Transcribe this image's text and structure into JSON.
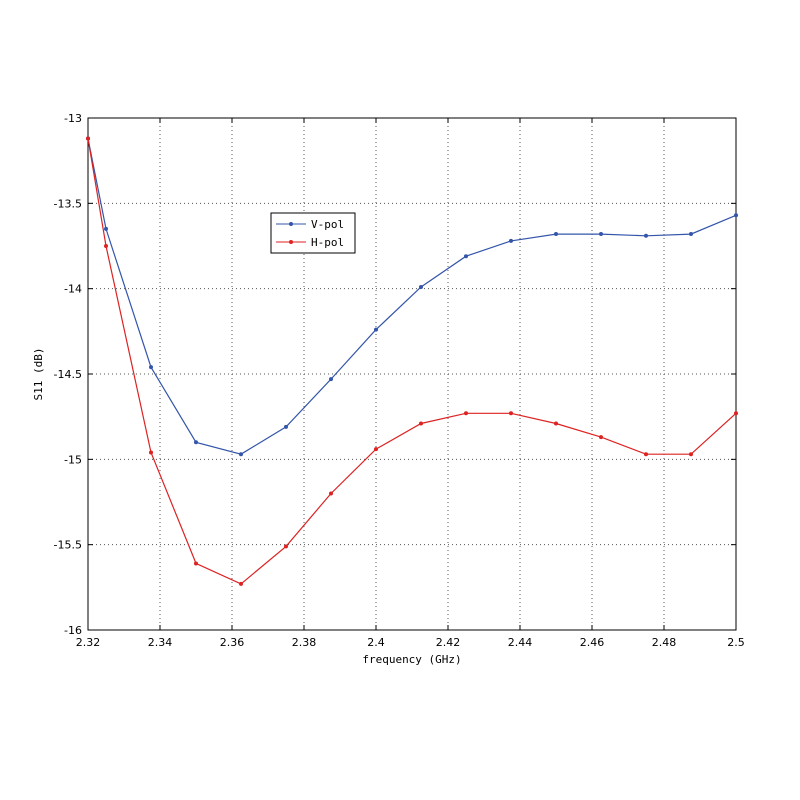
{
  "chart_data": {
    "type": "line",
    "title": "",
    "xlabel": "frequency (GHz)",
    "ylabel": "S11 (dB)",
    "xlim": [
      2.32,
      2.5
    ],
    "ylim": [
      -16,
      -13
    ],
    "x_ticks": [
      2.32,
      2.34,
      2.36,
      2.38,
      2.4,
      2.42,
      2.44,
      2.46,
      2.48,
      2.5
    ],
    "x_tick_labels": [
      "2.32",
      "2.34",
      "2.36",
      "2.38",
      "2.4",
      "2.42",
      "2.44",
      "2.46",
      "2.48",
      "2.5"
    ],
    "y_ticks": [
      -13,
      -13.5,
      -14,
      -14.5,
      -15,
      -15.5,
      -16
    ],
    "y_tick_labels": [
      "-13",
      "-13.5",
      "-14",
      "-14.5",
      "-15",
      "-15.5",
      "-16"
    ],
    "grid": true,
    "legend_position": "upper-left-inside",
    "x": [
      2.32,
      2.325,
      2.3375,
      2.35,
      2.3625,
      2.375,
      2.3875,
      2.4,
      2.4125,
      2.425,
      2.4375,
      2.45,
      2.4625,
      2.475,
      2.4875,
      2.5
    ],
    "series": [
      {
        "name": "V-pol",
        "color": "#3355aa",
        "values": [
          -13.12,
          -13.65,
          -14.46,
          -14.9,
          -14.97,
          -14.81,
          -14.53,
          -14.24,
          -13.99,
          -13.81,
          -13.72,
          -13.68,
          -13.68,
          -13.69,
          -13.68,
          -13.57
        ]
      },
      {
        "name": "H-pol",
        "color": "#dd2222",
        "values": [
          -13.12,
          -13.75,
          -14.96,
          -15.61,
          -15.73,
          -15.51,
          -15.2,
          -14.94,
          -14.79,
          -14.73,
          -14.73,
          -14.79,
          -14.87,
          -14.97,
          -14.97,
          -14.73
        ]
      }
    ]
  }
}
